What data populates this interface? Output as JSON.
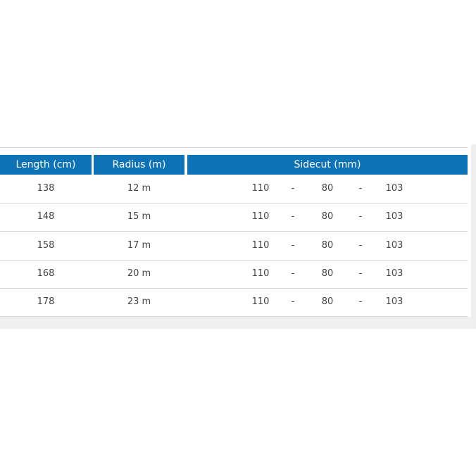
{
  "table": {
    "headers": [
      "Length (cm)",
      "Radius (m)",
      "Sidecut (mm)"
    ],
    "rows": [
      {
        "length": "138",
        "radius": "12 m",
        "tip": "110",
        "sep1": "-",
        "waist": "80",
        "sep2": "-",
        "tail": "103"
      },
      {
        "length": "148",
        "radius": "15 m",
        "tip": "110",
        "sep1": "-",
        "waist": "80",
        "sep2": "-",
        "tail": "103"
      },
      {
        "length": "158",
        "radius": "17 m",
        "tip": "110",
        "sep1": "-",
        "waist": "80",
        "sep2": "-",
        "tail": "103"
      },
      {
        "length": "168",
        "radius": "20 m",
        "tip": "110",
        "sep1": "-",
        "waist": "80",
        "sep2": "-",
        "tail": "103"
      },
      {
        "length": "178",
        "radius": "23 m",
        "tip": "110",
        "sep1": "-",
        "waist": "80",
        "sep2": "-",
        "tail": "103"
      }
    ]
  },
  "colors": {
    "header_bg": "#0e72b6",
    "header_text": "#ffffff"
  }
}
